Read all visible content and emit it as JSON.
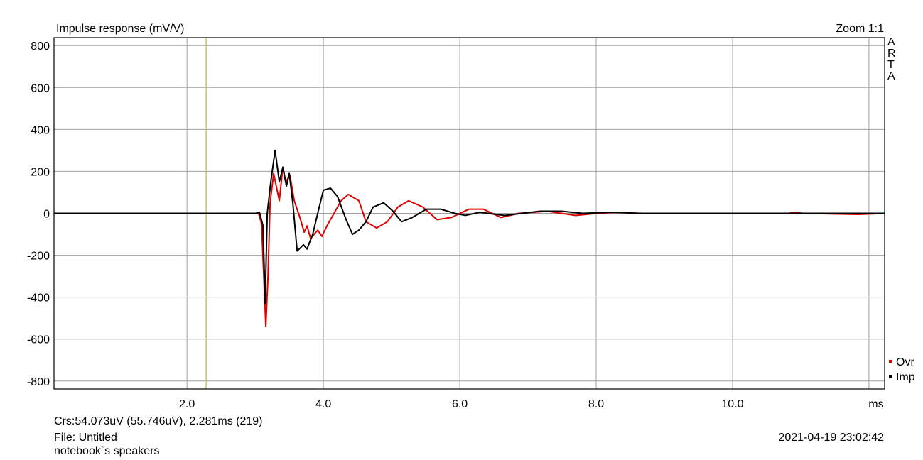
{
  "chart_data": {
    "type": "line",
    "title": "Impulse response (mV/V)",
    "zoom": "Zoom 1:1",
    "side_label": "ARTA",
    "cursor_readout": "Crs:54.073uV (55.746uV), 2.281ms (219)",
    "file": "File: Untitled",
    "note": "notebook`s speakers",
    "timestamp": "2021-04-19  23:02:42",
    "cursor_x": 2.281,
    "cursor_color": "#c8c850",
    "xlim": [
      0.05,
      12.23
    ],
    "ylim": [
      -838,
      838
    ],
    "xticks": [
      {
        "value": 2,
        "label": "2.0"
      },
      {
        "value": 4,
        "label": "4.0"
      },
      {
        "value": 6,
        "label": "6.0"
      },
      {
        "value": 8,
        "label": "8.0"
      },
      {
        "value": 10,
        "label": "10.0"
      },
      {
        "value": 12,
        "label": "ms"
      }
    ],
    "yticks": [
      -800,
      -600,
      -400,
      -200,
      0,
      200,
      400,
      600,
      800
    ],
    "grid": true,
    "legend": "lower right",
    "series": [
      {
        "name": "Ovr",
        "color": "#e00000",
        "x": [
          0.05,
          3.05,
          3.094,
          3.156,
          3.188,
          3.219,
          3.271,
          3.354,
          3.406,
          3.448,
          3.51,
          3.573,
          3.656,
          3.719,
          3.76,
          3.813,
          3.917,
          3.979,
          4.052,
          4.208,
          4.26,
          4.365,
          4.521,
          4.625,
          4.781,
          4.938,
          5.094,
          5.25,
          5.458,
          5.667,
          5.875,
          6.135,
          6.344,
          6.604,
          6.865,
          7.281,
          7.698,
          8.01,
          8.323,
          8.635,
          10.823,
          10.906,
          11.031,
          11.844,
          12.229
        ],
        "values": [
          0,
          0,
          -50,
          -540,
          -300,
          50,
          190,
          60,
          220,
          150,
          180,
          60,
          -20,
          -90,
          -60,
          -120,
          -80,
          -110,
          -60,
          30,
          60,
          90,
          60,
          -40,
          -70,
          -40,
          30,
          60,
          30,
          -30,
          -20,
          20,
          20,
          -20,
          0,
          10,
          -10,
          0,
          5,
          0,
          0,
          5,
          0,
          -5,
          0
        ]
      },
      {
        "name": "Imp",
        "color": "#000000",
        "x": [
          0.05,
          3.01,
          3.063,
          3.115,
          3.146,
          3.177,
          3.229,
          3.292,
          3.354,
          3.406,
          3.458,
          3.5,
          3.552,
          3.615,
          3.708,
          3.76,
          3.844,
          3.917,
          4.0,
          4.104,
          4.208,
          4.333,
          4.427,
          4.521,
          4.625,
          4.729,
          4.885,
          5.021,
          5.146,
          5.302,
          5.51,
          5.719,
          5.927,
          6.083,
          6.292,
          6.656,
          7.177,
          7.49,
          7.802,
          8.219,
          8.635,
          12.229
        ],
        "values": [
          0,
          0,
          5,
          -60,
          -430,
          0,
          150,
          300,
          150,
          220,
          130,
          190,
          50,
          -180,
          -150,
          -170,
          -100,
          0,
          110,
          120,
          80,
          -30,
          -100,
          -80,
          -40,
          30,
          50,
          10,
          -40,
          -20,
          20,
          20,
          0,
          -10,
          5,
          -10,
          10,
          10,
          0,
          5,
          0,
          0
        ]
      }
    ]
  }
}
